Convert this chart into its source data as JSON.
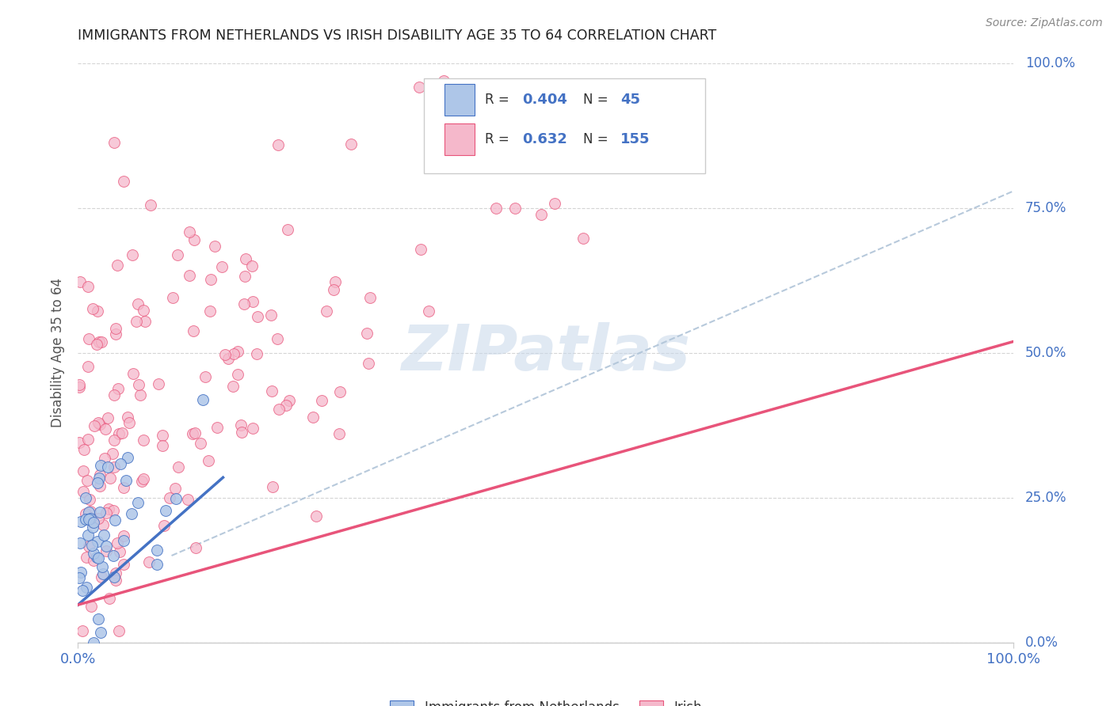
{
  "title": "IMMIGRANTS FROM NETHERLANDS VS IRISH DISABILITY AGE 35 TO 64 CORRELATION CHART",
  "source": "Source: ZipAtlas.com",
  "ylabel": "Disability Age 35 to 64",
  "xlim": [
    0.0,
    1.0
  ],
  "ylim": [
    0.0,
    1.0
  ],
  "ytick_labels": [
    "0.0%",
    "25.0%",
    "50.0%",
    "75.0%",
    "100.0%"
  ],
  "ytick_positions": [
    0.0,
    0.25,
    0.5,
    0.75,
    1.0
  ],
  "netherlands_R": 0.404,
  "netherlands_N": 45,
  "irish_R": 0.632,
  "irish_N": 155,
  "netherlands_color": "#aec6e8",
  "irish_color": "#f5b8cb",
  "netherlands_line_color": "#4472C4",
  "irish_line_color": "#e8547a",
  "dash_line_color": "#b0c4d8",
  "legend_text_color": "#4472C4",
  "background_color": "#ffffff",
  "grid_color": "#d0d0d0",
  "watermark_color": "#c8d8ea",
  "title_color": "#222222",
  "axis_tick_color": "#4472C4",
  "ylabel_color": "#555555"
}
